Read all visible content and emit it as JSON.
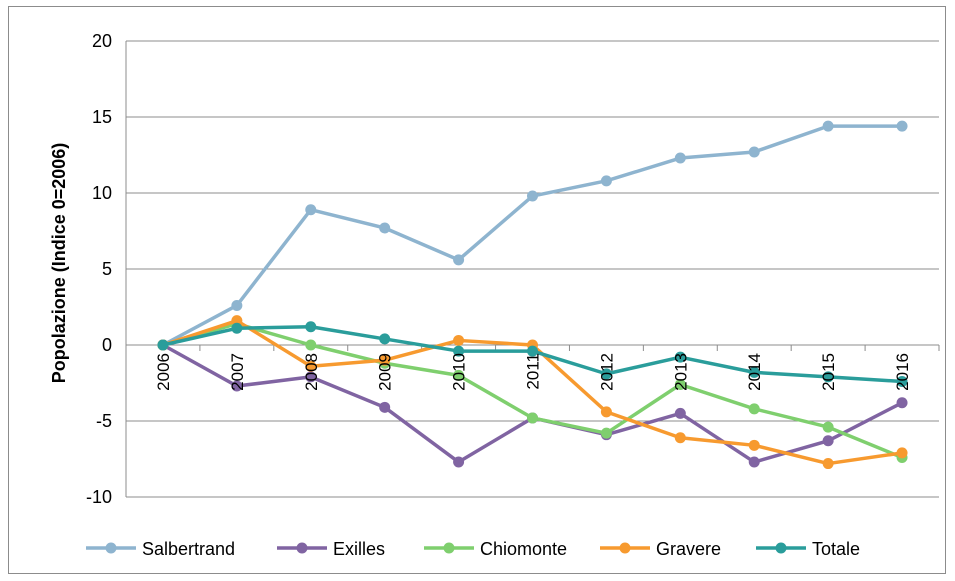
{
  "chart_data": {
    "type": "line",
    "title": "",
    "xlabel": "",
    "ylabel": "Popolazione (Indice 0=2006)",
    "x": [
      "2006",
      "2007",
      "2008",
      "2009",
      "2010",
      "2011",
      "2012",
      "2013",
      "2014",
      "2015",
      "2016"
    ],
    "yticks": [
      "20",
      "15",
      "10",
      "5",
      "0",
      "-5",
      "-10"
    ],
    "ylim": [
      -10,
      20
    ],
    "grid": true,
    "legend_position": "bottom",
    "series": [
      {
        "name": "Salbertrand",
        "color": "#8eb4cf",
        "values": [
          0,
          2.6,
          8.9,
          7.7,
          5.6,
          9.8,
          10.8,
          12.3,
          12.7,
          14.4,
          14.4
        ]
      },
      {
        "name": "Exilles",
        "color": "#8064a2",
        "values": [
          0,
          -2.7,
          -2.1,
          -4.1,
          -7.7,
          -4.8,
          -5.9,
          -4.5,
          -7.7,
          -6.3,
          -3.8
        ]
      },
      {
        "name": "Chiomonte",
        "color": "#7fcf6e",
        "values": [
          0,
          1.4,
          0.0,
          -1.2,
          -2.0,
          -4.8,
          -5.8,
          -2.6,
          -4.2,
          -5.4,
          -7.4
        ]
      },
      {
        "name": "Gravere",
        "color": "#f79a2f",
        "values": [
          0,
          1.6,
          -1.4,
          -1.0,
          0.3,
          0.0,
          -4.4,
          -6.1,
          -6.6,
          -7.8,
          -7.1
        ]
      },
      {
        "name": "Totale",
        "color": "#2a9d9b",
        "values": [
          0,
          1.1,
          1.2,
          0.4,
          -0.4,
          -0.4,
          -1.9,
          -0.8,
          -1.8,
          -2.1,
          -2.4
        ]
      }
    ]
  }
}
